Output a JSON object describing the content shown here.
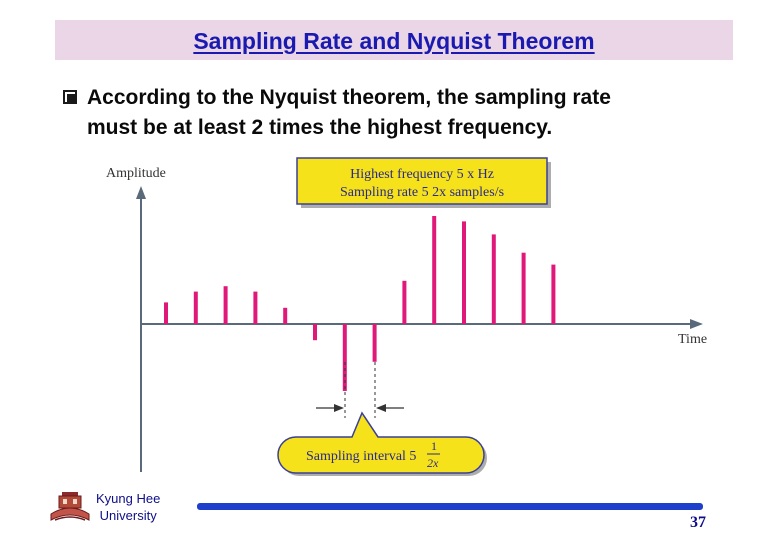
{
  "slide": {
    "title": "Sampling Rate and Nyquist Theorem",
    "bullet_line1": "According to the Nyquist theorem, the sampling rate",
    "bullet_line2": "must be at  least 2 times the highest frequency."
  },
  "figure": {
    "axis_y_label": "Amplitude",
    "axis_x_label": "Time",
    "callout_top_line1": "Highest frequency 5 x Hz",
    "callout_top_line2": "Sampling rate 5 2x samples/s",
    "callout_bottom_text": "Sampling interval 5",
    "callout_bottom_numerator": "1",
    "callout_bottom_denominator": "2x",
    "samples": [
      0.2,
      0.3,
      0.35,
      0.3,
      0.15,
      -0.15,
      -0.62,
      -0.35,
      0.4,
      1.0,
      0.95,
      0.83,
      0.66,
      0.55
    ],
    "colors": {
      "sample": "#e0187a",
      "callout_fill": "#f6e21a",
      "callout_stroke": "#3a3f9a",
      "axis": "#5a6a7a"
    }
  },
  "footer": {
    "university_line1": "Kyung Hee",
    "university_line2": "University",
    "page_number": "37",
    "logo_icon": "university-seal-icon"
  }
}
